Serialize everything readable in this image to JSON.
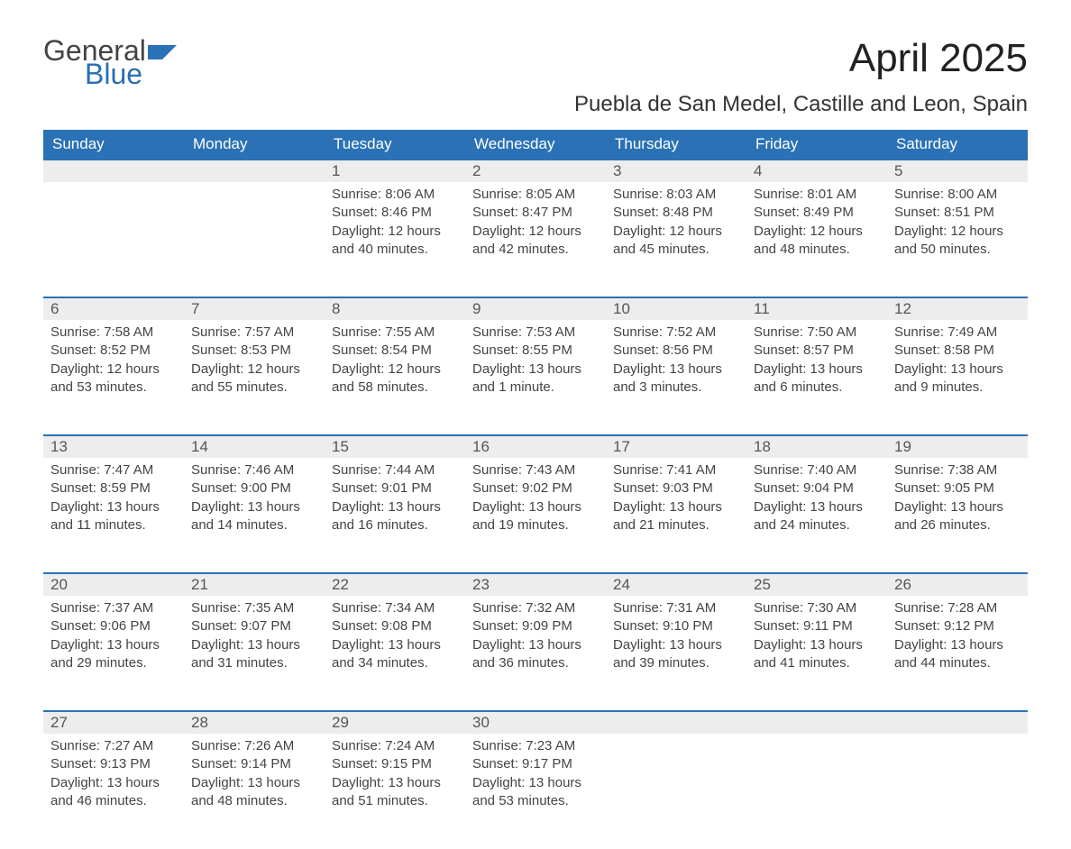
{
  "logo": {
    "word1": "General",
    "word2": "Blue",
    "flag_color": "#2a72b5",
    "text_color_dark": "#444"
  },
  "title": "April 2025",
  "location": "Puebla de San Medel, Castille and Leon, Spain",
  "colors": {
    "header_bg": "#2a72b5",
    "header_text": "#ffffff",
    "daynum_bg": "#ededed",
    "row_border": "#2a72b5",
    "body_text": "#444444",
    "page_bg": "#ffffff"
  },
  "columns": [
    "Sunday",
    "Monday",
    "Tuesday",
    "Wednesday",
    "Thursday",
    "Friday",
    "Saturday"
  ],
  "weeks": [
    [
      null,
      null,
      {
        "n": "1",
        "sunrise": "8:06 AM",
        "sunset": "8:46 PM",
        "daylight": "12 hours and 40 minutes."
      },
      {
        "n": "2",
        "sunrise": "8:05 AM",
        "sunset": "8:47 PM",
        "daylight": "12 hours and 42 minutes."
      },
      {
        "n": "3",
        "sunrise": "8:03 AM",
        "sunset": "8:48 PM",
        "daylight": "12 hours and 45 minutes."
      },
      {
        "n": "4",
        "sunrise": "8:01 AM",
        "sunset": "8:49 PM",
        "daylight": "12 hours and 48 minutes."
      },
      {
        "n": "5",
        "sunrise": "8:00 AM",
        "sunset": "8:51 PM",
        "daylight": "12 hours and 50 minutes."
      }
    ],
    [
      {
        "n": "6",
        "sunrise": "7:58 AM",
        "sunset": "8:52 PM",
        "daylight": "12 hours and 53 minutes."
      },
      {
        "n": "7",
        "sunrise": "7:57 AM",
        "sunset": "8:53 PM",
        "daylight": "12 hours and 55 minutes."
      },
      {
        "n": "8",
        "sunrise": "7:55 AM",
        "sunset": "8:54 PM",
        "daylight": "12 hours and 58 minutes."
      },
      {
        "n": "9",
        "sunrise": "7:53 AM",
        "sunset": "8:55 PM",
        "daylight": "13 hours and 1 minute."
      },
      {
        "n": "10",
        "sunrise": "7:52 AM",
        "sunset": "8:56 PM",
        "daylight": "13 hours and 3 minutes."
      },
      {
        "n": "11",
        "sunrise": "7:50 AM",
        "sunset": "8:57 PM",
        "daylight": "13 hours and 6 minutes."
      },
      {
        "n": "12",
        "sunrise": "7:49 AM",
        "sunset": "8:58 PM",
        "daylight": "13 hours and 9 minutes."
      }
    ],
    [
      {
        "n": "13",
        "sunrise": "7:47 AM",
        "sunset": "8:59 PM",
        "daylight": "13 hours and 11 minutes."
      },
      {
        "n": "14",
        "sunrise": "7:46 AM",
        "sunset": "9:00 PM",
        "daylight": "13 hours and 14 minutes."
      },
      {
        "n": "15",
        "sunrise": "7:44 AM",
        "sunset": "9:01 PM",
        "daylight": "13 hours and 16 minutes."
      },
      {
        "n": "16",
        "sunrise": "7:43 AM",
        "sunset": "9:02 PM",
        "daylight": "13 hours and 19 minutes."
      },
      {
        "n": "17",
        "sunrise": "7:41 AM",
        "sunset": "9:03 PM",
        "daylight": "13 hours and 21 minutes."
      },
      {
        "n": "18",
        "sunrise": "7:40 AM",
        "sunset": "9:04 PM",
        "daylight": "13 hours and 24 minutes."
      },
      {
        "n": "19",
        "sunrise": "7:38 AM",
        "sunset": "9:05 PM",
        "daylight": "13 hours and 26 minutes."
      }
    ],
    [
      {
        "n": "20",
        "sunrise": "7:37 AM",
        "sunset": "9:06 PM",
        "daylight": "13 hours and 29 minutes."
      },
      {
        "n": "21",
        "sunrise": "7:35 AM",
        "sunset": "9:07 PM",
        "daylight": "13 hours and 31 minutes."
      },
      {
        "n": "22",
        "sunrise": "7:34 AM",
        "sunset": "9:08 PM",
        "daylight": "13 hours and 34 minutes."
      },
      {
        "n": "23",
        "sunrise": "7:32 AM",
        "sunset": "9:09 PM",
        "daylight": "13 hours and 36 minutes."
      },
      {
        "n": "24",
        "sunrise": "7:31 AM",
        "sunset": "9:10 PM",
        "daylight": "13 hours and 39 minutes."
      },
      {
        "n": "25",
        "sunrise": "7:30 AM",
        "sunset": "9:11 PM",
        "daylight": "13 hours and 41 minutes."
      },
      {
        "n": "26",
        "sunrise": "7:28 AM",
        "sunset": "9:12 PM",
        "daylight": "13 hours and 44 minutes."
      }
    ],
    [
      {
        "n": "27",
        "sunrise": "7:27 AM",
        "sunset": "9:13 PM",
        "daylight": "13 hours and 46 minutes."
      },
      {
        "n": "28",
        "sunrise": "7:26 AM",
        "sunset": "9:14 PM",
        "daylight": "13 hours and 48 minutes."
      },
      {
        "n": "29",
        "sunrise": "7:24 AM",
        "sunset": "9:15 PM",
        "daylight": "13 hours and 51 minutes."
      },
      {
        "n": "30",
        "sunrise": "7:23 AM",
        "sunset": "9:17 PM",
        "daylight": "13 hours and 53 minutes."
      },
      null,
      null,
      null
    ]
  ],
  "labels": {
    "sunrise": "Sunrise:",
    "sunset": "Sunset:",
    "daylight": "Daylight:"
  }
}
